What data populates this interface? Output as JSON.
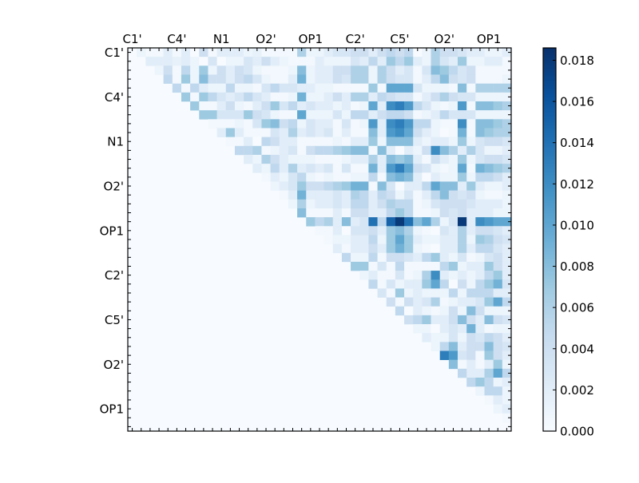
{
  "chart_data": {
    "type": "heatmap",
    "title": "",
    "xlabel": "",
    "ylabel": "",
    "triangle": "upper",
    "size": 43,
    "tick_label_every": 5,
    "x_tick_labels": [
      "C1'",
      "C4'",
      "N1",
      "O2'",
      "OP1",
      "C2'",
      "C5'",
      "O2'",
      "OP1"
    ],
    "y_tick_labels": [
      "C1'",
      "C4'",
      "N1",
      "O2'",
      "OP1",
      "C2'",
      "C5'",
      "O2'",
      "OP1"
    ],
    "x_tick_position": "top",
    "colormap": "Blues",
    "colormap_stops": [
      "#f7fbff",
      "#deebf7",
      "#c6dbef",
      "#9ecae1",
      "#6baed6",
      "#4292c6",
      "#2171b5",
      "#08519c",
      "#08306b"
    ],
    "vmin": 0,
    "vmax": 0.0186,
    "colorbar": {
      "position": "right",
      "ticks": [
        0.0,
        0.002,
        0.004,
        0.006,
        0.008,
        0.01,
        0.012,
        0.014,
        0.016,
        0.018
      ],
      "tick_labels": [
        "0.000",
        "0.002",
        "0.004",
        "0.006",
        "0.008",
        "0.010",
        "0.012",
        "0.014",
        "0.016",
        "0.018"
      ]
    },
    "rows": [
      [
        0.001,
        0.0005,
        0.0005,
        0.002,
        0.0005,
        0.002,
        0,
        0.004,
        0.0005,
        0.002,
        0.002,
        0.002,
        0.001,
        0.0015,
        0.0005,
        0.0005,
        0.0005,
        0.0005,
        0.006,
        0.001,
        0.001,
        0.002,
        0.003,
        0.003,
        0.004,
        0.004,
        0.002,
        0.004,
        0.005,
        0.004,
        0.005,
        0,
        0.001,
        0.006,
        0.004,
        0.004,
        0.003,
        0.002,
        0.002,
        0.001,
        0.001,
        0.002
      ],
      [
        0.002,
        0.002,
        0.002,
        0.0015,
        0.002,
        0.001,
        0,
        0.003,
        0,
        0.001,
        0.001,
        0.003,
        0.002,
        0.004,
        0.002,
        0.001,
        0.0005,
        0.0005,
        0.0005,
        0.002,
        0.001,
        0.001,
        0.001,
        0.003,
        0.002,
        0.005,
        0.002,
        0.007,
        0.005,
        0.007,
        0.002,
        0.001,
        0.006,
        0.003,
        0.002,
        0.007,
        0.001,
        0.001,
        0.002,
        0.002,
        0.0005
      ],
      [
        0.001,
        0.004,
        0.0005,
        0.005,
        0.001,
        0.007,
        0.001,
        0.004,
        0.002,
        0.004,
        0.003,
        0.001,
        0.0005,
        0.0005,
        0.0005,
        0.001,
        0.008,
        0.001,
        0.002,
        0.002,
        0.004,
        0.004,
        0.006,
        0.006,
        0.001,
        0.006,
        0.004,
        0.002,
        0.003,
        0.0005,
        0.003,
        0.008,
        0.007,
        0.005,
        0.003,
        0.004,
        0.0005,
        0.0005,
        0.0005,
        0.0005
      ],
      [
        0.005,
        0.0005,
        0.007,
        0.001,
        0.008,
        0.004,
        0.004,
        0.002,
        0.004,
        0.005,
        0.003,
        0.001,
        0.0005,
        0.0005,
        0.002,
        0.009,
        0.001,
        0.002,
        0.002,
        0.004,
        0.003,
        0.006,
        0.006,
        0.001,
        0.006,
        0.004,
        0.003,
        0.003,
        0.0005,
        0.002,
        0.005,
        0.008,
        0.004,
        0.003,
        0.004,
        0.0005,
        0.0005,
        0.0005,
        0.001
      ],
      [
        0.005,
        0.0005,
        0.005,
        0.002,
        0.001,
        0.001,
        0.005,
        0.001,
        0.001,
        0.0005,
        0.003,
        0.005,
        0.003,
        0.003,
        0.002,
        0.002,
        0.001,
        0.001,
        0.0005,
        0.0005,
        0.0005,
        0.0005,
        0.007,
        0.0005,
        0.01,
        0.01,
        0.01,
        0.003,
        0.001,
        0.001,
        0.001,
        0.0005,
        0.008,
        0.0005,
        0.006,
        0.006,
        0.006,
        0.006
      ],
      [
        0.007,
        0.0005,
        0.007,
        0.005,
        0.003,
        0.002,
        0.003,
        0.005,
        0.003,
        0.002,
        0.0005,
        0.0005,
        0.001,
        0.009,
        0.001,
        0.001,
        0.002,
        0.004,
        0.002,
        0.006,
        0.006,
        0.002,
        0.005,
        0.004,
        0.003,
        0.003,
        0.0005,
        0.002,
        0.004,
        0.006,
        0.004,
        0.003,
        0.003,
        0.001,
        0.001,
        0.001,
        0.001
      ],
      [
        0.007,
        0.0005,
        0.0005,
        0.002,
        0.004,
        0.001,
        0.0005,
        0.002,
        0.004,
        0.007,
        0.003,
        0.005,
        0.002,
        0.003,
        0.002,
        0.002,
        0.001,
        0.002,
        0.0005,
        0.001,
        0.01,
        0.002,
        0.012,
        0.013,
        0.011,
        0.005,
        0.003,
        0.001,
        0.0005,
        0.001,
        0.011,
        0.0005,
        0.008,
        0.008,
        0.007,
        0.006
      ],
      [
        0.007,
        0.007,
        0.003,
        0.003,
        0.003,
        0.007,
        0.004,
        0.003,
        0.001,
        0.0005,
        0.0005,
        0.01,
        0.001,
        0.001,
        0.001,
        0.003,
        0.001,
        0.005,
        0.005,
        0.002,
        0.004,
        0.005,
        0.005,
        0.004,
        0.0005,
        0.001,
        0.002,
        0.005,
        0.003,
        0.003,
        0.003,
        0.001,
        0.001,
        0.001,
        0.001
      ],
      [
        0.0005,
        0.0005,
        0.0005,
        0.001,
        0.0005,
        0.003,
        0.007,
        0.008,
        0.004,
        0.005,
        0.001,
        0.003,
        0.002,
        0.002,
        0.0005,
        0.003,
        0.0005,
        0.001,
        0.011,
        0.002,
        0.012,
        0.013,
        0.011,
        0.005,
        0.005,
        0.001,
        0.0005,
        0.0005,
        0.012,
        0.0005,
        0.008,
        0.008,
        0.007,
        0.006
      ],
      [
        0.002,
        0.007,
        0.002,
        0.0005,
        0.0005,
        0.0005,
        0.003,
        0.002,
        0.006,
        0.002,
        0.003,
        0.002,
        0.003,
        0.0005,
        0.002,
        0.0005,
        0.0005,
        0.008,
        0.002,
        0.011,
        0.012,
        0.01,
        0.004,
        0.002,
        0.001,
        0,
        0.0005,
        0.009,
        0.0005,
        0.008,
        0.007,
        0.006,
        0.006
      ],
      [
        0.0005,
        0.0005,
        0.002,
        0,
        0.005,
        0.004,
        0.002,
        0.002,
        0.0005,
        0.0005,
        0.0005,
        0.0005,
        0.001,
        0.0005,
        0.002,
        0.002,
        0.007,
        0.001,
        0.008,
        0.008,
        0.008,
        0.002,
        0.001,
        0.002,
        0.002,
        0.001,
        0.007,
        0.001,
        0.003,
        0.004,
        0.004,
        0.003
      ],
      [
        0.005,
        0.005,
        0.006,
        0.0005,
        0.001,
        0.002,
        0.003,
        0.0005,
        0.004,
        0.005,
        0.005,
        0.006,
        0.007,
        0.008,
        0.008,
        0.0005,
        0.008,
        0.002,
        0,
        0.002,
        0.001,
        0.004,
        0.012,
        0.008,
        0.006,
        0.002,
        0.006,
        0.003,
        0.001,
        0.001,
        0.002
      ],
      [
        0.002,
        0.001,
        0.006,
        0.004,
        0.002,
        0.001,
        0.001,
        0.001,
        0.0005,
        0.0005,
        0.0005,
        0.001,
        0.002,
        0.002,
        0.006,
        0.002,
        0.008,
        0.007,
        0.008,
        0.002,
        0.0005,
        0.004,
        0.002,
        0.001,
        0.007,
        0.001,
        0.003,
        0.004,
        0.004,
        0.003
      ],
      [
        0.002,
        0.001,
        0.005,
        0.002,
        0.006,
        0.002,
        0.003,
        0.002,
        0.003,
        0.0005,
        0.003,
        0.0005,
        0.0005,
        0.009,
        0.002,
        0.011,
        0.013,
        0.01,
        0.004,
        0.003,
        0.001,
        0.0005,
        0.001,
        0.01,
        0.0005,
        0.009,
        0.008,
        0.007,
        0.006
      ],
      [
        0.0005,
        0.002,
        0.001,
        0.003,
        0.005,
        0.001,
        0.0005,
        0.001,
        0.0005,
        0.0005,
        0.001,
        0.001,
        0.005,
        0.0005,
        0.008,
        0.009,
        0.008,
        0.002,
        0,
        0.002,
        0.001,
        0.001,
        0.007,
        0.001,
        0.005,
        0.005,
        0.004,
        0.002
      ],
      [
        0.001,
        0.002,
        0.003,
        0.007,
        0.004,
        0.004,
        0.005,
        0.006,
        0.007,
        0.009,
        0.009,
        0.0005,
        0.008,
        0.003,
        0,
        0.002,
        0.002,
        0.005,
        0.01,
        0.008,
        0.008,
        0.002,
        0.007,
        0.002,
        0.001,
        0.001,
        0.002
      ],
      [
        0.0005,
        0.002,
        0.009,
        0.002,
        0.002,
        0.002,
        0.003,
        0.002,
        0.006,
        0.005,
        0.002,
        0.005,
        0.004,
        0.001,
        0.003,
        0.0005,
        0.002,
        0.005,
        0.008,
        0.004,
        0.003,
        0.004,
        0.001,
        0.0005,
        0.0005,
        0.001
      ],
      [
        0.001,
        0.006,
        0.001,
        0.002,
        0.002,
        0.003,
        0.002,
        0.005,
        0.005,
        0.002,
        0.004,
        0.006,
        0.005,
        0.005,
        0.0005,
        0.001,
        0.003,
        0.004,
        0.004,
        0.004,
        0.003,
        0.002,
        0.002,
        0.002,
        0.001
      ],
      [
        0.008,
        0.0005,
        0.0005,
        0.0005,
        0.002,
        0.0005,
        0.004,
        0.004,
        0.002,
        0.002,
        0.005,
        0.007,
        0.005,
        0.0005,
        0.0005,
        0.001,
        0.004,
        0.003,
        0.004,
        0.002,
        0.002,
        0.002,
        0.001,
        0.001
      ],
      [
        0.007,
        0.005,
        0.006,
        0.002,
        0.008,
        0.002,
        0.003,
        0.014,
        0.005,
        0.015,
        0.018,
        0.014,
        0.008,
        0.01,
        0.006,
        0.001,
        0.003,
        0.018,
        0.002,
        0.012,
        0.011,
        0.01,
        0.01
      ],
      [
        0.0005,
        0.0005,
        0.002,
        0,
        0.003,
        0.003,
        0.004,
        0.002,
        0.007,
        0.008,
        0.006,
        0.001,
        0.0005,
        0,
        0.003,
        0.002,
        0.006,
        0.002,
        0.004,
        0.004,
        0.003,
        0.002
      ],
      [
        0.0005,
        0.001,
        0.001,
        0.002,
        0.002,
        0.005,
        0.001,
        0.007,
        0.01,
        0.007,
        0.002,
        0.001,
        0.001,
        0.002,
        0.002,
        0.006,
        0.001,
        0.007,
        0.006,
        0.004,
        0.003
      ],
      [
        0.002,
        0.0005,
        0.002,
        0.002,
        0.004,
        0.002,
        0.007,
        0.009,
        0.007,
        0.001,
        0.0005,
        0,
        0.002,
        0.002,
        0.006,
        0.002,
        0.005,
        0.005,
        0.003,
        0.002
      ],
      [
        0.005,
        0.001,
        0.001,
        0.005,
        0.0005,
        0.004,
        0.004,
        0.003,
        0.002,
        0.005,
        0.007,
        0.002,
        0.001,
        0.003,
        0.0005,
        0.001,
        0.003,
        0.004,
        0.002
      ],
      [
        0.007,
        0.007,
        0.0005,
        0.003,
        0.0005,
        0.005,
        0.0005,
        0.0005,
        0.0005,
        0.0005,
        0.005,
        0.007,
        0.001,
        0.002,
        0.002,
        0.007,
        0.004,
        0.002
      ],
      [
        0.001,
        0.002,
        0.0005,
        0.0005,
        0.003,
        0.0005,
        0.001,
        0.006,
        0.012,
        0.002,
        0.001,
        0.002,
        0.001,
        0.002,
        0.005,
        0.007,
        0.002
      ],
      [
        0.005,
        0.0005,
        0.003,
        0.001,
        0.002,
        0.002,
        0.007,
        0.01,
        0.005,
        0,
        0.004,
        0.001,
        0.005,
        0.007,
        0.009,
        0.003
      ],
      [
        0.003,
        0.0005,
        0.007,
        0.001,
        0.002,
        0.001,
        0.001,
        0.001,
        0.005,
        0.001,
        0.005,
        0.005,
        0.005,
        0.002,
        0.002
      ],
      [
        0.004,
        0.0005,
        0.004,
        0.002,
        0.003,
        0.006,
        0.0005,
        0.001,
        0.002,
        0.002,
        0.003,
        0.007,
        0.01,
        0.005
      ],
      [
        0.005,
        0,
        0.002,
        0.001,
        0.0005,
        0.001,
        0.004,
        0.001,
        0.008,
        0.004,
        0.001,
        0.001,
        0.001
      ],
      [
        0.004,
        0.005,
        0.007,
        0.002,
        0.002,
        0.004,
        0.008,
        0.004,
        0.002,
        0.008,
        0.004,
        0.003
      ],
      [
        0.001,
        0.001,
        0,
        0.002,
        0.003,
        0.002,
        0.009,
        0.002,
        0.0005,
        0.001,
        0.001
      ],
      [
        0.002,
        0.001,
        0.001,
        0.003,
        0.001,
        0.004,
        0.003,
        0.005,
        0.004,
        0.002
      ],
      [
        0.001,
        0.005,
        0.008,
        0.002,
        0.004,
        0.004,
        0.008,
        0.004,
        0.003
      ],
      [
        0.013,
        0.011,
        0.003,
        0.004,
        0.0005,
        0.007,
        0.004,
        0.002
      ],
      [
        0.008,
        0.0005,
        0.002,
        0.0005,
        0.002,
        0.007,
        0.001
      ],
      [
        0.005,
        0.002,
        0.002,
        0.006,
        0.01,
        0.005
      ],
      [
        0.005,
        0.007,
        0.005,
        0.001,
        0.002
      ],
      [
        0.001,
        0.005,
        0.005,
        0.001
      ],
      [
        0.0005,
        0.002,
        0.001
      ],
      [
        0.001,
        0.002
      ],
      [
        0.0005
      ],
      []
    ]
  }
}
